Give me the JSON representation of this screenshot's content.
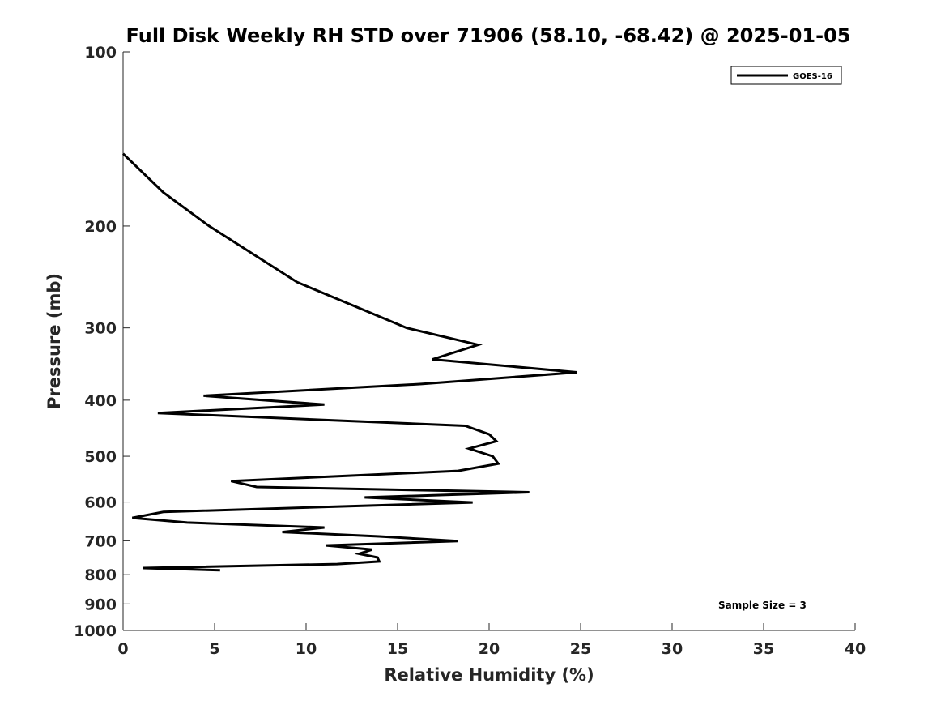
{
  "chart_data": {
    "type": "line",
    "title": "Full Disk Weekly RH STD over 71906 (58.10, -68.42) @ 2025-01-05",
    "xlabel": "Relative Humidity (%)",
    "ylabel": "Pressure (mb)",
    "xlim": [
      0,
      40
    ],
    "ylim": [
      100,
      1000
    ],
    "yscale": "log",
    "yreversed": true,
    "x_ticks": [
      "0",
      "5",
      "10",
      "15",
      "20",
      "25",
      "30",
      "35",
      "40"
    ],
    "y_ticks": [
      "100",
      "200",
      "300",
      "400",
      "500",
      "600",
      "700",
      "800",
      "900",
      "1000"
    ],
    "grid": false,
    "legend": {
      "position": "top-right"
    },
    "annotation": "Sample Size = 3",
    "series": [
      {
        "name": "GOES-16",
        "color": "#000000",
        "points": [
          [
            0.0,
            150
          ],
          [
            2.2,
            175
          ],
          [
            4.7,
            200
          ],
          [
            9.5,
            250
          ],
          [
            15.5,
            300
          ],
          [
            19.4,
            321
          ],
          [
            16.9,
            340
          ],
          [
            24.8,
            358
          ],
          [
            16.3,
            375
          ],
          [
            4.4,
            393
          ],
          [
            11.0,
            407
          ],
          [
            1.9,
            421
          ],
          [
            18.7,
            443
          ],
          [
            20.0,
            458
          ],
          [
            20.4,
            471
          ],
          [
            18.9,
            485
          ],
          [
            20.2,
            500
          ],
          [
            20.5,
            515
          ],
          [
            18.3,
            530
          ],
          [
            5.9,
            552
          ],
          [
            7.3,
            565
          ],
          [
            22.2,
            577
          ],
          [
            13.2,
            589
          ],
          [
            19.1,
            601
          ],
          [
            2.2,
            624
          ],
          [
            0.5,
            639
          ],
          [
            3.5,
            651
          ],
          [
            11.0,
            664
          ],
          [
            8.7,
            676
          ],
          [
            14.0,
            688
          ],
          [
            18.3,
            701
          ],
          [
            11.1,
            713
          ],
          [
            13.6,
            725
          ],
          [
            12.9,
            737
          ],
          [
            13.9,
            748
          ],
          [
            14.0,
            760
          ],
          [
            11.7,
            768
          ],
          [
            1.1,
            780
          ],
          [
            5.3,
            787
          ]
        ]
      }
    ]
  }
}
